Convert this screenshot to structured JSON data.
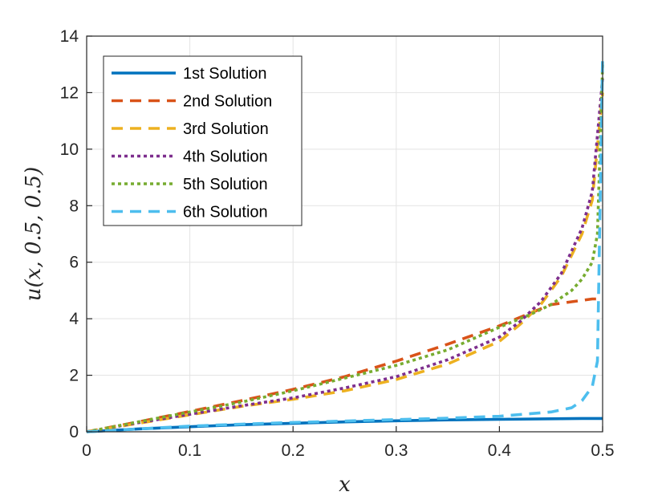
{
  "chart_data": {
    "type": "line",
    "xlabel": "x",
    "ylabel": "u(x, 0.5, 0.5)",
    "xlim": [
      0,
      0.5
    ],
    "ylim": [
      0,
      14
    ],
    "xticks": [
      0,
      0.1,
      0.2,
      0.3,
      0.4,
      0.5
    ],
    "xtick_labels": [
      "0",
      "0.1",
      "0.2",
      "0.3",
      "0.4",
      "0.5"
    ],
    "yticks": [
      0,
      2,
      4,
      6,
      8,
      10,
      12,
      14
    ],
    "ytick_labels": [
      "0",
      "2",
      "4",
      "6",
      "8",
      "10",
      "12",
      "14"
    ],
    "grid": true,
    "legend_position": "top-left",
    "series": [
      {
        "name": "1st Solution",
        "color": "#0072BD",
        "style": "solid",
        "x": [
          0,
          0.05,
          0.1,
          0.15,
          0.2,
          0.25,
          0.3,
          0.35,
          0.4,
          0.45,
          0.48,
          0.5
        ],
        "y": [
          0,
          0.1,
          0.18,
          0.25,
          0.3,
          0.35,
          0.39,
          0.42,
          0.44,
          0.46,
          0.47,
          0.47
        ]
      },
      {
        "name": "2nd Solution",
        "color": "#D95319",
        "style": "dashed",
        "x": [
          0,
          0.05,
          0.1,
          0.15,
          0.2,
          0.25,
          0.3,
          0.35,
          0.4,
          0.43,
          0.45,
          0.47,
          0.49,
          0.5
        ],
        "y": [
          0,
          0.35,
          0.72,
          1.1,
          1.5,
          1.95,
          2.5,
          3.1,
          3.75,
          4.2,
          4.5,
          4.6,
          4.7,
          4.7
        ]
      },
      {
        "name": "3rd Solution",
        "color": "#EDB120",
        "style": "dashed",
        "x": [
          0,
          0.05,
          0.1,
          0.15,
          0.2,
          0.25,
          0.3,
          0.35,
          0.4,
          0.42,
          0.44,
          0.46,
          0.48,
          0.49,
          0.5
        ],
        "y": [
          0,
          0.3,
          0.6,
          0.9,
          1.15,
          1.45,
          1.85,
          2.4,
          3.2,
          3.8,
          4.5,
          5.5,
          7.0,
          8.2,
          12.0
        ]
      },
      {
        "name": "4th Solution",
        "color": "#7E2F8E",
        "style": "dotted",
        "x": [
          0,
          0.05,
          0.1,
          0.15,
          0.2,
          0.25,
          0.3,
          0.35,
          0.4,
          0.42,
          0.44,
          0.46,
          0.48,
          0.49,
          0.5
        ],
        "y": [
          0,
          0.32,
          0.62,
          0.92,
          1.2,
          1.55,
          1.95,
          2.55,
          3.35,
          3.9,
          4.6,
          5.6,
          7.2,
          8.5,
          12.5
        ]
      },
      {
        "name": "5th Solution",
        "color": "#77AC30",
        "style": "dotted",
        "x": [
          0,
          0.05,
          0.1,
          0.15,
          0.2,
          0.25,
          0.3,
          0.35,
          0.4,
          0.43,
          0.45,
          0.47,
          0.48,
          0.49,
          0.495,
          0.5
        ],
        "y": [
          0,
          0.35,
          0.7,
          1.05,
          1.45,
          1.9,
          2.35,
          2.9,
          3.7,
          4.15,
          4.5,
          5.0,
          5.4,
          6.0,
          7.0,
          13.0
        ]
      },
      {
        "name": "6th Solution",
        "color": "#4DBEEE",
        "style": "dashed",
        "x": [
          0,
          0.05,
          0.1,
          0.15,
          0.2,
          0.25,
          0.3,
          0.35,
          0.4,
          0.45,
          0.47,
          0.48,
          0.49,
          0.495,
          0.5
        ],
        "y": [
          0,
          0.1,
          0.2,
          0.27,
          0.33,
          0.38,
          0.43,
          0.48,
          0.55,
          0.7,
          0.85,
          1.1,
          1.6,
          2.5,
          13.3
        ]
      }
    ]
  }
}
